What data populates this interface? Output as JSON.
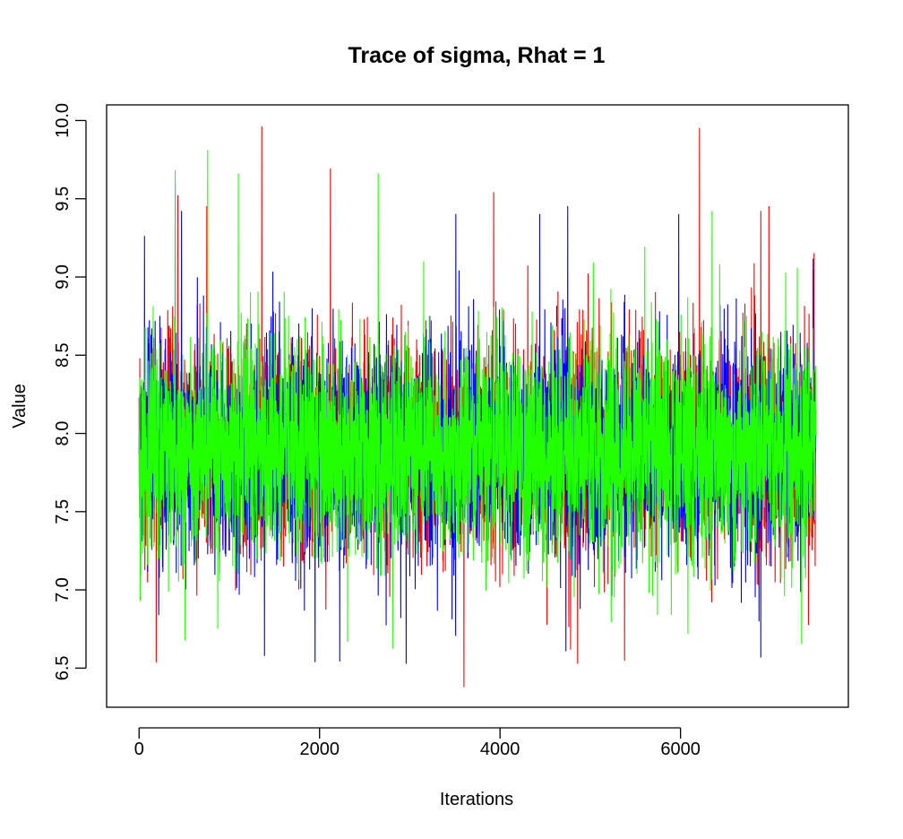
{
  "chart_data": {
    "type": "line",
    "title": "Trace of sigma, Rhat = 1",
    "xlabel": "Iterations",
    "ylabel": "Value",
    "xlim": [
      -360,
      7860
    ],
    "ylim": [
      6.25,
      10.1
    ],
    "x_ticks": [
      {
        "value": 0,
        "label": "0"
      },
      {
        "value": 2000,
        "label": "2000"
      },
      {
        "value": 4000,
        "label": "4000"
      },
      {
        "value": 6000,
        "label": "6000"
      }
    ],
    "y_ticks": [
      {
        "value": 6.5,
        "label": "6.5"
      },
      {
        "value": 7.0,
        "label": "7.0"
      },
      {
        "value": 7.5,
        "label": "7.5"
      },
      {
        "value": 8.0,
        "label": "8.0"
      },
      {
        "value": 8.5,
        "label": "8.5"
      },
      {
        "value": 9.0,
        "label": "9.0"
      },
      {
        "value": 9.5,
        "label": "9.5"
      },
      {
        "value": 10.0,
        "label": "10.0"
      }
    ],
    "grid": false,
    "legend": "none",
    "iterations": 7500,
    "series": [
      {
        "color": "#ff0000",
        "mean": 7.9,
        "spread_sd": 0.34,
        "min": 6.38,
        "max": 9.96,
        "notable_points": [
          [
            190,
            6.54
          ],
          [
            430,
            9.52
          ],
          [
            750,
            9.45
          ],
          [
            1360,
            9.96
          ],
          [
            2120,
            9.69
          ],
          [
            3600,
            6.38
          ],
          [
            3930,
            9.54
          ],
          [
            4860,
            6.53
          ],
          [
            5380,
            6.55
          ],
          [
            6210,
            9.95
          ],
          [
            6890,
            9.42
          ],
          [
            6980,
            9.45
          ],
          [
            7480,
            9.15
          ]
        ]
      },
      {
        "color": "#0000ff",
        "mean": 7.9,
        "spread_sd": 0.34,
        "min": 6.53,
        "max": 9.6,
        "notable_points": [
          [
            60,
            9.26
          ],
          [
            400,
            9.6
          ],
          [
            470,
            9.42
          ],
          [
            1390,
            6.58
          ],
          [
            1950,
            6.54
          ],
          [
            2960,
            6.53
          ],
          [
            3510,
            9.4
          ],
          [
            4440,
            9.4
          ],
          [
            4730,
            6.61
          ],
          [
            4750,
            9.45
          ],
          [
            5980,
            9.4
          ],
          [
            6890,
            6.57
          ]
        ]
      },
      {
        "color": "#22ff00",
        "mean": 7.9,
        "spread_sd": 0.34,
        "min": 6.63,
        "max": 9.81,
        "notable_points": [
          [
            400,
            9.68
          ],
          [
            510,
            6.68
          ],
          [
            760,
            9.81
          ],
          [
            1100,
            9.66
          ],
          [
            2310,
            6.67
          ],
          [
            2650,
            9.66
          ],
          [
            2810,
            6.63
          ],
          [
            6350,
            9.42
          ]
        ]
      }
    ]
  }
}
